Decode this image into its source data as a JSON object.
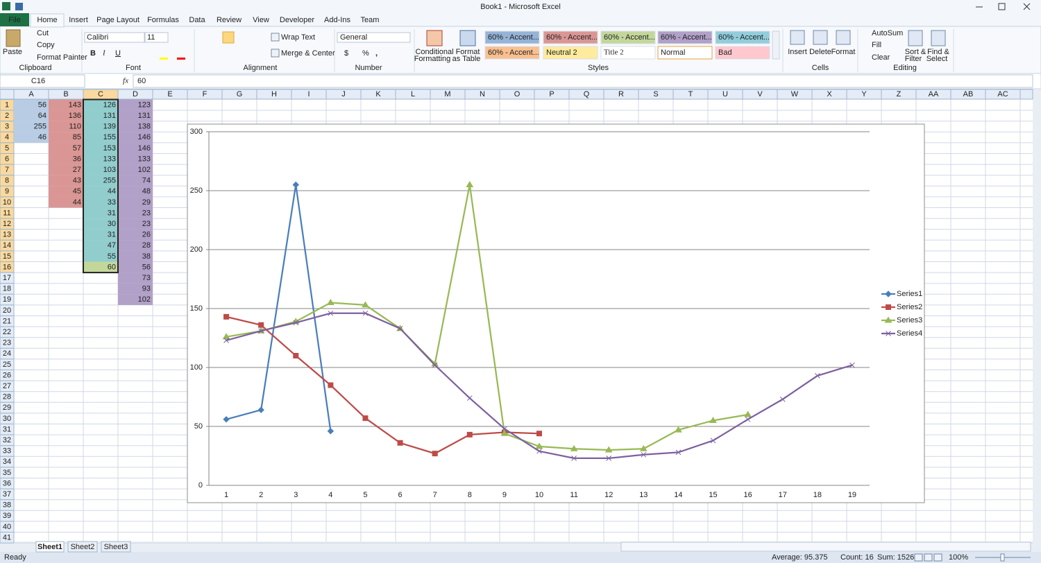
{
  "title_bar": {
    "title": "Book1  -  Microsoft Excel"
  },
  "ribbon_tabs": [
    "File",
    "Home",
    "Insert",
    "Page Layout",
    "Formulas",
    "Data",
    "Review",
    "View",
    "Developer",
    "Add-Ins",
    "Team"
  ],
  "ribbon": {
    "clipboard": {
      "label": "Clipboard",
      "paste": "Paste",
      "cut": "Cut",
      "copy": "Copy",
      "format_painter": "Format Painter"
    },
    "font": {
      "label": "Font",
      "name": "Calibri",
      "size": "11",
      "bold": "B",
      "italic": "I",
      "underline": "U"
    },
    "alignment": {
      "label": "Alignment",
      "wrap": "Wrap Text",
      "merge": "Merge & Center"
    },
    "number": {
      "label": "Number",
      "format": "General",
      "currency": "$",
      "percent": "%",
      "comma": ","
    },
    "styles": {
      "label": "Styles",
      "conditional": [
        "Conditional",
        "Formatting"
      ],
      "format_table": [
        "Format",
        "as Table"
      ],
      "cells": [
        {
          "text": "60% - Accent...",
          "color": "#95b3d7"
        },
        {
          "text": "60% - Accent...",
          "color": "#da9694"
        },
        {
          "text": "60% - Accent...",
          "color": "#c4d79b"
        },
        {
          "text": "60% - Accent...",
          "color": "#b1a0c7"
        },
        {
          "text": "60% - Accent...",
          "color": "#92cddc"
        },
        {
          "text": "60% - Accent...",
          "color": "#fabf8f"
        },
        {
          "text": "Neutral 2",
          "color": "#ffeb9c"
        },
        {
          "text": "Title 2",
          "color": "#ffffff"
        },
        {
          "text": "Normal",
          "color": "#ffffff"
        },
        {
          "text": "Bad",
          "color": "#ffc7ce"
        }
      ]
    },
    "cells": {
      "label": "Cells",
      "insert": "Insert",
      "delete": "Delete",
      "format": "Format"
    },
    "editing": {
      "label": "Editing",
      "autosum": "AutoSum",
      "fill": "Fill",
      "clear": "Clear",
      "sort": [
        "Sort &",
        "Filter"
      ],
      "find": [
        "Find &",
        "Select"
      ]
    }
  },
  "formula_bar": {
    "name_box": "C16",
    "fx": "fx",
    "content": "60"
  },
  "sheet": {
    "columns": [
      "A",
      "B",
      "C",
      "D",
      "E",
      "F",
      "G",
      "H",
      "I",
      "J",
      "K",
      "L",
      "M",
      "N",
      "O",
      "P",
      "Q",
      "R",
      "S",
      "T",
      "U",
      "V",
      "W",
      "X",
      "Y",
      "Z",
      "AA",
      "AB",
      "AC"
    ],
    "rows": [
      1,
      2,
      3,
      4,
      5,
      6,
      7,
      8,
      9,
      10,
      11,
      12,
      13,
      14,
      15,
      16,
      17,
      18,
      19,
      20,
      21,
      22,
      23,
      24,
      25,
      26,
      27,
      28,
      29,
      30,
      31,
      32,
      33,
      34,
      35,
      36,
      37,
      38,
      39,
      40,
      41
    ],
    "cell_fills": [
      "#b8cce4",
      "#da9694",
      "#92cdcd",
      "#b1a0c7"
    ],
    "active_fill": "#c4d79b"
  },
  "sheet_tabs": [
    "Sheet1",
    "Sheet2",
    "Sheet3"
  ],
  "status_bar": {
    "ready": "Ready",
    "average": "Average: 95.375",
    "count": "Count: 16",
    "sum": "Sum: 1526",
    "zoom": "100%"
  },
  "chart_data": {
    "type": "line",
    "categories": [
      1,
      2,
      3,
      4,
      5,
      6,
      7,
      8,
      9,
      10,
      11,
      12,
      13,
      14,
      15,
      16,
      17,
      18,
      19
    ],
    "ylim": [
      0,
      300
    ],
    "yticks": [
      0,
      50,
      100,
      150,
      200,
      250,
      300
    ],
    "grid": true,
    "legend": "right",
    "series": [
      {
        "name": "Series1",
        "color": "#4a7ebb",
        "marker": "diamond",
        "values": [
          56,
          64,
          255,
          46,
          null,
          null,
          null,
          null,
          null,
          null,
          null,
          null,
          null,
          null,
          null,
          null,
          null,
          null,
          null
        ]
      },
      {
        "name": "Series2",
        "color": "#be4b48",
        "marker": "square",
        "values": [
          143,
          136,
          110,
          85,
          57,
          36,
          27,
          43,
          45,
          44,
          null,
          null,
          null,
          null,
          null,
          null,
          null,
          null,
          null
        ]
      },
      {
        "name": "Series3",
        "color": "#98b954",
        "marker": "triangle",
        "values": [
          126,
          131,
          139,
          155,
          153,
          133,
          103,
          255,
          44,
          33,
          31,
          30,
          31,
          47,
          55,
          60,
          null,
          null,
          null
        ]
      },
      {
        "name": "Series4",
        "color": "#7d60a0",
        "marker": "x",
        "values": [
          123,
          131,
          138,
          146,
          146,
          133,
          102,
          74,
          48,
          29,
          23,
          23,
          26,
          28,
          38,
          56,
          73,
          93,
          102
        ]
      }
    ]
  }
}
